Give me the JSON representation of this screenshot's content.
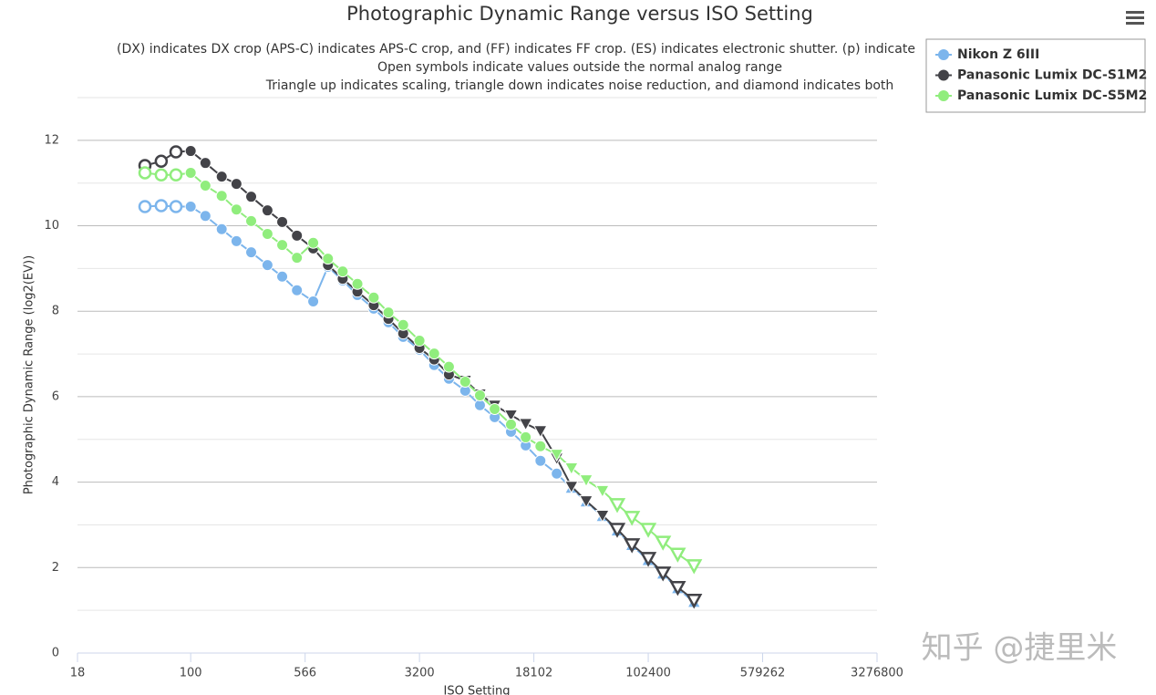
{
  "chart_data": {
    "type": "line",
    "title": "Photographic Dynamic Range versus ISO Setting",
    "subtitle": [
      "(DX) indicates DX crop (APS-C) indicates APS-C crop, and (FF) indicates FF crop. (ES) indicates electronic shutter. (p) indicate",
      "Open symbols indicate values outside the normal analog range",
      "Triangle up indicates scaling, triangle down indicates noise reduction, and diamond indicates both"
    ],
    "x_label": "ISO Setting",
    "y_label": "Photographic Dynamic Range (log2(EV))",
    "x_scale": "log",
    "xlim": [
      18,
      3276800
    ],
    "xticks": [
      18,
      100,
      566,
      3200,
      18102,
      102400,
      579262,
      3276800
    ],
    "ylim": [
      0,
      13
    ],
    "yticks": [
      0,
      2,
      4,
      6,
      8,
      10,
      12
    ],
    "y_minor_ticks": [
      1,
      3,
      5,
      7,
      9,
      11,
      13
    ],
    "grid": true,
    "legend_position": "top-right",
    "x": [
      50,
      64,
      80,
      100,
      125,
      160,
      200,
      250,
      320,
      400,
      500,
      640,
      800,
      1000,
      1250,
      1600,
      2000,
      2500,
      3200,
      4000,
      5000,
      6400,
      8000,
      10000,
      12800,
      16000,
      20000,
      25600,
      32000,
      40000,
      51200,
      64000,
      80000,
      102400,
      128000,
      160000,
      204800
    ],
    "series": [
      {
        "name": "Nikon Z 6III",
        "color": "#7cb5ec",
        "values": [
          10.45,
          10.47,
          10.45,
          10.45,
          10.23,
          9.92,
          9.64,
          9.38,
          9.08,
          8.81,
          8.49,
          8.23,
          9.04,
          8.72,
          8.38,
          8.06,
          7.74,
          7.4,
          7.1,
          6.74,
          6.42,
          6.14,
          5.8,
          5.52,
          5.18,
          4.86,
          4.5,
          4.2,
          3.86,
          3.54,
          3.2,
          2.86,
          2.52,
          2.17,
          1.85,
          1.51,
          1.19
        ],
        "markers": [
          "open-circle",
          "open-circle",
          "open-circle",
          "circle",
          "circle",
          "circle",
          "circle",
          "circle",
          "circle",
          "circle",
          "circle",
          "circle",
          "circle",
          "circle",
          "circle",
          "circle",
          "circle",
          "circle",
          "circle",
          "circle",
          "circle",
          "circle",
          "circle",
          "circle",
          "circle",
          "circle",
          "circle",
          "circle",
          "triangle-up",
          "triangle-up",
          "triangle-up",
          "triangle-up",
          "triangle-up",
          "triangle-up",
          "triangle-up",
          "triangle-up",
          "triangle-up"
        ]
      },
      {
        "name": "Panasonic Lumix DC-S1M2",
        "color": "#434348",
        "values": [
          11.41,
          11.51,
          11.73,
          11.75,
          11.47,
          11.15,
          10.98,
          10.68,
          10.36,
          10.09,
          9.77,
          9.47,
          9.08,
          8.76,
          8.46,
          8.14,
          7.82,
          7.48,
          7.14,
          6.87,
          6.52,
          6.38,
          6.06,
          5.8,
          5.57,
          5.37,
          5.2,
          4.56,
          3.9,
          3.56,
          3.22,
          2.9,
          2.54,
          2.22,
          1.88,
          1.54,
          1.24
        ],
        "markers": [
          "open-circle",
          "open-circle",
          "open-circle",
          "circle",
          "circle",
          "circle",
          "circle",
          "circle",
          "circle",
          "circle",
          "circle",
          "circle",
          "circle",
          "circle",
          "circle",
          "circle",
          "circle",
          "circle",
          "circle",
          "circle",
          "circle",
          "triangle-down",
          "triangle-down",
          "triangle-down",
          "triangle-down",
          "triangle-down",
          "triangle-down",
          "triangle-down",
          "triangle-down",
          "triangle-down",
          "triangle-down",
          "open-triangle-down",
          "open-triangle-down",
          "open-triangle-down",
          "open-triangle-down",
          "open-triangle-down",
          "open-triangle-down"
        ]
      },
      {
        "name": "Panasonic Lumix DC-S5M2",
        "color": "#90ed7d",
        "values": [
          11.24,
          11.19,
          11.19,
          11.24,
          10.94,
          10.7,
          10.38,
          10.11,
          9.81,
          9.55,
          9.25,
          9.6,
          9.23,
          8.93,
          8.64,
          8.32,
          7.97,
          7.68,
          7.31,
          7.01,
          6.7,
          6.35,
          6.03,
          5.71,
          5.35,
          5.05,
          4.84,
          4.65,
          4.33,
          4.05,
          3.8,
          3.48,
          3.18,
          2.9,
          2.6,
          2.32,
          2.05
        ],
        "markers": [
          "open-circle",
          "open-circle",
          "open-circle",
          "circle",
          "circle",
          "circle",
          "circle",
          "circle",
          "circle",
          "circle",
          "circle",
          "circle",
          "circle",
          "circle",
          "circle",
          "circle",
          "circle",
          "circle",
          "circle",
          "circle",
          "circle",
          "circle",
          "circle",
          "circle",
          "circle",
          "circle",
          "circle",
          "triangle-down",
          "triangle-down",
          "triangle-down",
          "triangle-down",
          "open-triangle-down",
          "open-triangle-down",
          "open-triangle-down",
          "open-triangle-down",
          "open-triangle-down",
          "open-triangle-down"
        ]
      }
    ]
  },
  "watermark": "知乎 @捷里米"
}
